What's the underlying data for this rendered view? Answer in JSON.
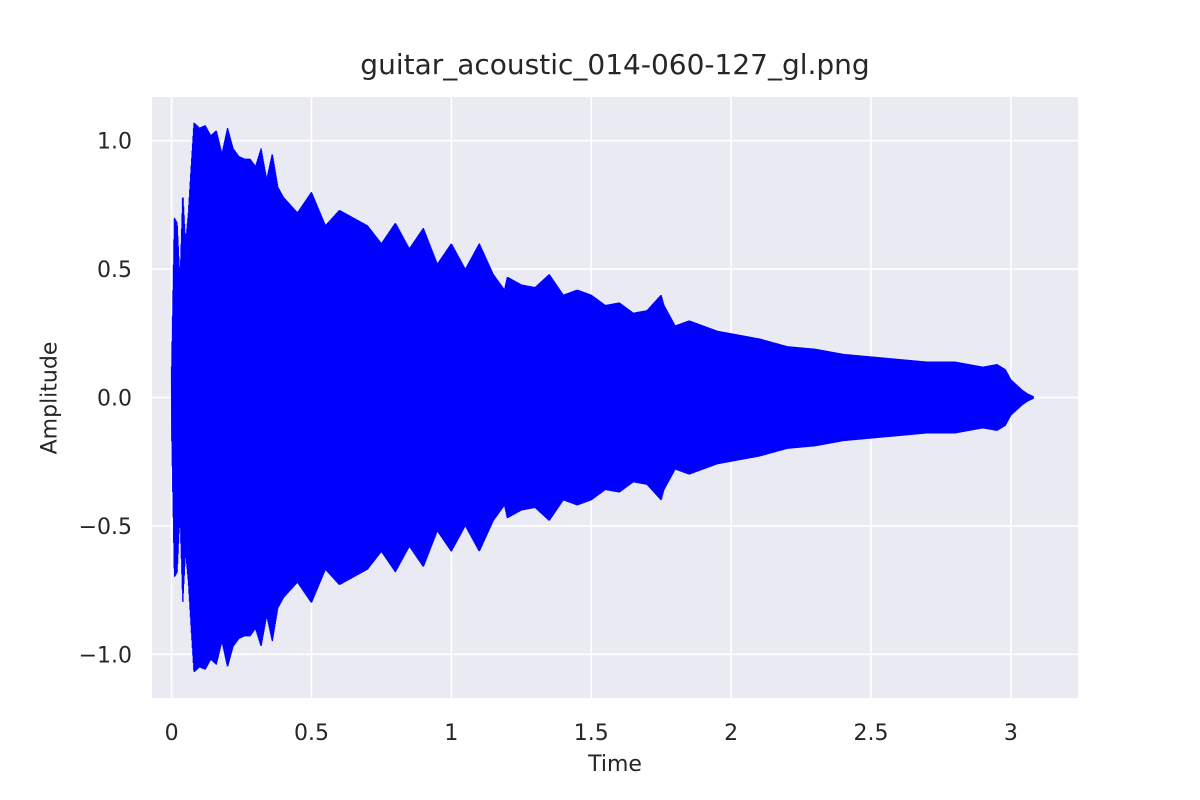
{
  "chart_data": {
    "type": "line",
    "title": "guitar_acoustic_014-060-127_gl.png",
    "xlabel": "Time",
    "ylabel": "Amplitude",
    "xlim": [
      -0.07,
      3.24
    ],
    "ylim": [
      -1.17,
      1.17
    ],
    "xticks": [
      0,
      0.5,
      1,
      1.5,
      2,
      2.5,
      3
    ],
    "xtick_labels": [
      "0",
      "0.5",
      "1",
      "1.5",
      "2",
      "2.5",
      "3"
    ],
    "yticks": [
      1.0,
      0.5,
      0.0,
      -0.5,
      -1.0
    ],
    "ytick_labels": [
      "1.0",
      "0.5",
      "0.0",
      "−0.5",
      "−1.0"
    ],
    "grid": true,
    "series": [
      {
        "color": "#0000ff",
        "envelope": {
          "t": [
            0.0,
            0.01,
            0.02,
            0.03,
            0.04,
            0.05,
            0.06,
            0.07,
            0.08,
            0.1,
            0.12,
            0.14,
            0.16,
            0.18,
            0.2,
            0.22,
            0.24,
            0.26,
            0.28,
            0.3,
            0.32,
            0.34,
            0.36,
            0.38,
            0.4,
            0.45,
            0.5,
            0.55,
            0.6,
            0.65,
            0.7,
            0.75,
            0.8,
            0.85,
            0.9,
            0.95,
            1.0,
            1.05,
            1.1,
            1.15,
            1.19,
            1.2,
            1.25,
            1.3,
            1.35,
            1.4,
            1.45,
            1.5,
            1.55,
            1.6,
            1.65,
            1.7,
            1.75,
            1.76,
            1.8,
            1.85,
            1.9,
            1.95,
            2.0,
            2.1,
            2.2,
            2.3,
            2.4,
            2.5,
            2.6,
            2.7,
            2.8,
            2.9,
            2.95,
            2.98,
            3.0,
            3.02,
            3.04,
            3.06,
            3.08
          ],
          "amp": [
            0.12,
            0.7,
            0.68,
            0.45,
            0.8,
            0.6,
            0.72,
            0.9,
            1.07,
            1.05,
            1.06,
            1.02,
            1.04,
            0.95,
            1.05,
            0.97,
            0.94,
            0.93,
            0.93,
            0.9,
            0.97,
            0.85,
            0.95,
            0.82,
            0.78,
            0.72,
            0.8,
            0.67,
            0.73,
            0.7,
            0.67,
            0.6,
            0.68,
            0.58,
            0.66,
            0.52,
            0.6,
            0.5,
            0.6,
            0.48,
            0.42,
            0.47,
            0.44,
            0.43,
            0.48,
            0.4,
            0.42,
            0.4,
            0.36,
            0.37,
            0.33,
            0.34,
            0.4,
            0.36,
            0.28,
            0.3,
            0.28,
            0.26,
            0.25,
            0.23,
            0.2,
            0.19,
            0.17,
            0.16,
            0.15,
            0.14,
            0.14,
            0.12,
            0.13,
            0.11,
            0.07,
            0.05,
            0.03,
            0.015,
            0.005
          ]
        }
      }
    ]
  }
}
